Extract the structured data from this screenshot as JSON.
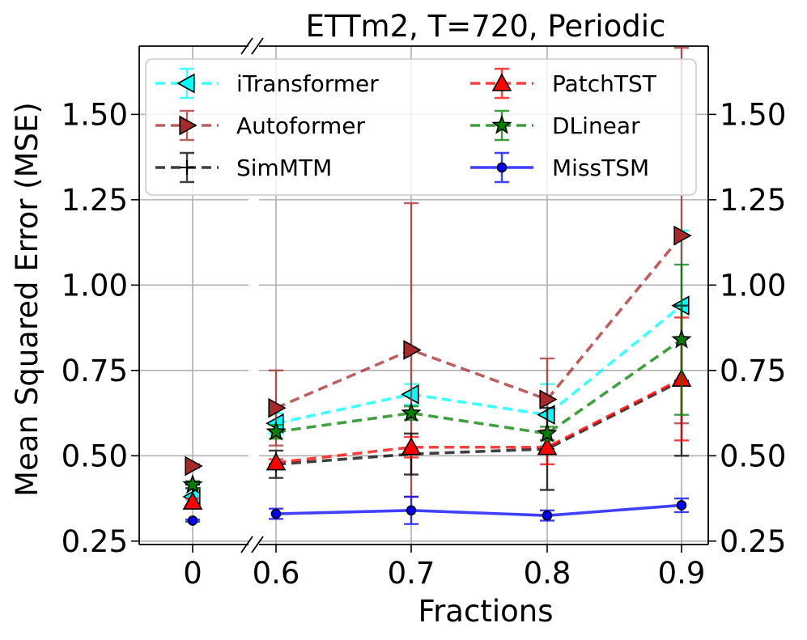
{
  "chart_data": {
    "type": "line",
    "title": "ETTm2, T=720, Periodic",
    "xlabel": "Fractions",
    "ylabel": "Mean Squared Error (MSE)",
    "x_left_categories": [
      "0"
    ],
    "x_right_categories": [
      "0.6",
      "0.7",
      "0.8",
      "0.9"
    ],
    "ylim": [
      0.24,
      1.7
    ],
    "yticks": [
      0.25,
      0.5,
      0.75,
      1.0,
      1.25,
      1.5
    ],
    "ytick_labels": [
      "0.25",
      "0.50",
      "0.75",
      "1.00",
      "1.25",
      "1.50"
    ],
    "grid": true,
    "broken_axis": true,
    "legend_position": "top",
    "series": [
      {
        "name": "iTransformer",
        "color": "#00ffff",
        "linestyle": "dashed",
        "marker": "triangle-left",
        "left_value": 0.38,
        "left_err": 0.01,
        "values": [
          0.595,
          0.68,
          0.62,
          0.94
        ],
        "errors": [
          0.03,
          0.03,
          0.09,
          0.22
        ]
      },
      {
        "name": "Autoformer",
        "color": "#a52a2a",
        "linestyle": "dashed",
        "marker": "triangle-right",
        "left_value": 0.47,
        "left_err": 0.005,
        "values": [
          0.64,
          0.81,
          0.665,
          1.145
        ],
        "errors": [
          0.11,
          0.43,
          0.12,
          0.55
        ]
      },
      {
        "name": "SimMTM",
        "color": "#000000",
        "linestyle": "dashed",
        "marker": "plus",
        "left_value": 0.415,
        "left_err": 0.01,
        "values": [
          0.475,
          0.505,
          0.52,
          0.72
        ],
        "errors": [
          0.04,
          0.06,
          0.12,
          0.22
        ]
      },
      {
        "name": "PatchTST",
        "color": "#ff0000",
        "linestyle": "dashed",
        "marker": "triangle-up",
        "left_value": 0.365,
        "left_err": 0.01,
        "values": [
          0.48,
          0.525,
          0.525,
          0.725
        ],
        "errors": [
          0.01,
          0.03,
          0.05,
          0.18
        ]
      },
      {
        "name": "DLinear",
        "color": "#008000",
        "linestyle": "dashed",
        "marker": "star",
        "left_value": 0.415,
        "left_err": 0.01,
        "values": [
          0.57,
          0.625,
          0.565,
          0.84
        ],
        "errors": [
          0.02,
          0.02,
          0.02,
          0.22
        ]
      },
      {
        "name": "MissTSM",
        "color": "#0000ff",
        "linestyle": "solid",
        "marker": "circle",
        "left_value": 0.31,
        "left_err": 0.003,
        "values": [
          0.33,
          0.34,
          0.325,
          0.355
        ],
        "errors": [
          0.015,
          0.04,
          0.015,
          0.02
        ]
      }
    ]
  }
}
